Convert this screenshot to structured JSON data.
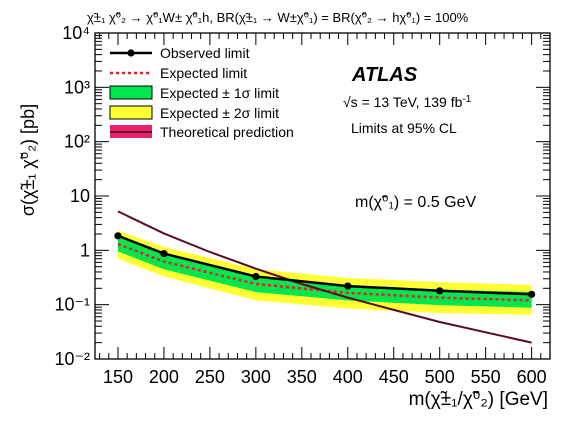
{
  "chart_data": {
    "type": "line",
    "title": "χ̃±₁ χ̃⁰₂ → χ̃⁰₁W± χ̃⁰₁h,  BR(χ̃±₁ → W±χ̃⁰₁) = BR(χ̃⁰₂ → hχ̃⁰₁) = 100%",
    "xlabel": "m(χ̃±₁/χ̃⁰₂) [GeV]",
    "ylabel": "σ(χ̃±₁ χ̃⁰₂) [pb]",
    "xlim": [
      125,
      620
    ],
    "ylim": [
      0.01,
      10000
    ],
    "yscale": "log",
    "xticks": [
      150,
      200,
      250,
      300,
      350,
      400,
      450,
      500,
      550,
      600
    ],
    "yticks": [
      {
        "value": 0.01,
        "label": "10⁻²"
      },
      {
        "value": 0.1,
        "label": "10⁻¹"
      },
      {
        "value": 1,
        "label": "1"
      },
      {
        "value": 10,
        "label": "10"
      },
      {
        "value": 100,
        "label": "10²"
      },
      {
        "value": 1000,
        "label": "10³"
      },
      {
        "value": 10000,
        "label": "10⁴"
      }
    ],
    "series": [
      {
        "name": "Observed limit",
        "color": "#000000",
        "style": "solid-markers",
        "x": [
          150,
          200,
          300,
          400,
          500,
          600
        ],
        "y": [
          1.85,
          0.87,
          0.33,
          0.22,
          0.18,
          0.155
        ]
      },
      {
        "name": "Expected limit",
        "color": "#e8202a",
        "style": "dotted",
        "x": [
          150,
          200,
          300,
          400,
          500,
          600
        ],
        "y": [
          1.3,
          0.62,
          0.24,
          0.165,
          0.135,
          0.12
        ]
      },
      {
        "name": "Expected ± 1σ limit",
        "color": "#00e64d",
        "style": "band",
        "x": [
          150,
          200,
          300,
          400,
          500,
          600
        ],
        "low": [
          0.95,
          0.45,
          0.17,
          0.12,
          0.098,
          0.088
        ],
        "high": [
          1.75,
          0.85,
          0.33,
          0.23,
          0.19,
          0.17
        ]
      },
      {
        "name": "Expected ± 2σ limit",
        "color": "#ffff33",
        "style": "band",
        "x": [
          150,
          200,
          300,
          400,
          500,
          600
        ],
        "low": [
          0.7,
          0.33,
          0.12,
          0.085,
          0.07,
          0.065
        ],
        "high": [
          2.3,
          1.15,
          0.45,
          0.31,
          0.26,
          0.23
        ]
      },
      {
        "name": "Theoretical prediction",
        "color": "#5c0a22",
        "style": "solid",
        "x": [
          150,
          200,
          250,
          300,
          350,
          400,
          450,
          500,
          550,
          600
        ],
        "y": [
          5.2,
          2.05,
          0.93,
          0.46,
          0.24,
          0.135,
          0.08,
          0.048,
          0.031,
          0.02
        ]
      }
    ],
    "legend": {
      "placement": "top-left",
      "entries": [
        "Observed limit",
        "Expected limit",
        "Expected ± 1σ limit",
        "Expected ± 2σ limit",
        "Theoretical prediction"
      ]
    },
    "annotations": {
      "experiment": "ATLAS",
      "energy_prefix": "√s = 13 TeV, 139 fb",
      "energy_sup": "-1",
      "cl": "Limits at 95% CL",
      "lsp_mass": "m(χ̃⁰₁) = 0.5 GeV"
    },
    "colors": {
      "observed": "#000000",
      "expected": "#e8202a",
      "band_1sigma": "#00e64d",
      "band_2sigma": "#ffff33",
      "theory": "#5c0a22",
      "theory_band": "#e8206e"
    }
  }
}
